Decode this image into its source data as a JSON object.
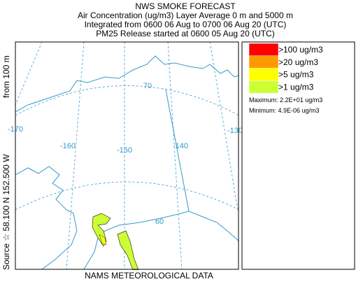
{
  "header": {
    "title": "NWS SMOKE FORECAST",
    "lines": [
      "Air Concentration (ug/m3) Layer Average    0 m and  5000 m",
      "Integrated from 0600 06 Aug to 0700 06 Aug 20 (UTC)",
      "PM25 Release started at 0600 05 Aug 20 (UTC)"
    ]
  },
  "side_label": {
    "source": "Source ☆ 58.100  N 152.500  W",
    "height": "from   100 m"
  },
  "map": {
    "longitude_labels": [
      "-170",
      "-160",
      "-150",
      "-140",
      "-130"
    ],
    "latitude_labels": [
      "70",
      "60"
    ]
  },
  "legend": {
    "entries": [
      {
        "label": ">100 ug/m3",
        "color": "#ff0000"
      },
      {
        "label": ">20 ug/m3",
        "color": "#ff9900"
      },
      {
        "label": ">5 ug/m3",
        "color": "#ffff00"
      },
      {
        "label": ">1 ug/m3",
        "color": "#ccff33"
      }
    ],
    "maximum": "Maximum: 2.2E+01 ug/m3",
    "minimum": "Minimum: 4.9E-06 ug/m3"
  },
  "footer": "NAMS METEOROLOGICAL DATA"
}
